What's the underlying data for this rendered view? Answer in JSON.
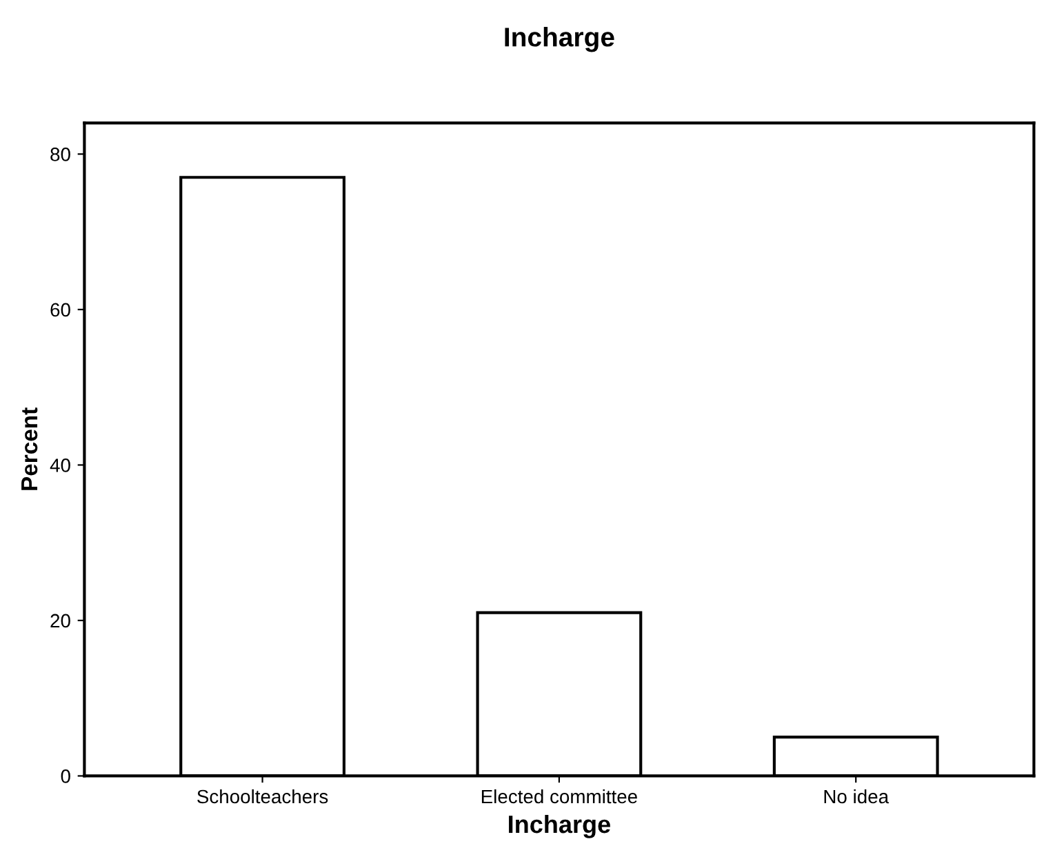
{
  "chart_data": {
    "type": "bar",
    "title": "Incharge",
    "xlabel": "Incharge",
    "ylabel": "Percent",
    "categories": [
      "Schoolteachers",
      "Elected committee",
      "No idea"
    ],
    "values": [
      77,
      21,
      5
    ],
    "color": "#ffffff",
    "ylim": [
      0,
      84
    ],
    "yticks": [
      0,
      20,
      40,
      60,
      80
    ],
    "grid": false
  }
}
